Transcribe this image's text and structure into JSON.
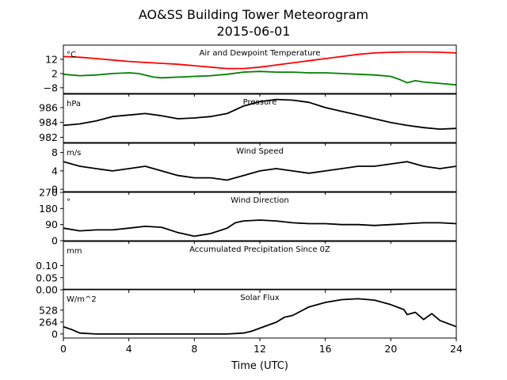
{
  "title": {
    "line1": "AO&SS Building Tower Meteorogram",
    "line2": "2015-06-01"
  },
  "colors": {
    "air_temperature": "#ff0000",
    "dewpoint_temperature": "#008000",
    "default_series": "#000000"
  },
  "chart_data": [
    {
      "type": "line",
      "title": "Air and Dewpoint Temperature",
      "unit": "°C",
      "xlabel": "",
      "xlim": [
        0,
        24
      ],
      "ylim": [
        -12,
        22
      ],
      "yticks": [
        -8,
        2,
        12
      ],
      "ytick_labels": [
        "−8",
        "2",
        "12"
      ],
      "series": [
        {
          "key": "air",
          "color": "#ff0000",
          "x": [
            0,
            1,
            2,
            3,
            4,
            5,
            6,
            7,
            8,
            9,
            10,
            11,
            12,
            13,
            14,
            15,
            16,
            17,
            18,
            19,
            20,
            21,
            22,
            23,
            24
          ],
          "y": [
            14.0,
            13.5,
            12.5,
            11.5,
            10.5,
            9.8,
            9.2,
            8.5,
            7.5,
            6.5,
            5.5,
            5.5,
            6.5,
            8.0,
            9.5,
            11.0,
            12.5,
            14.0,
            15.5,
            16.5,
            17.0,
            17.2,
            17.2,
            17.0,
            16.5
          ]
        },
        {
          "key": "dewpoint",
          "color": "#008000",
          "x": [
            0,
            1,
            2,
            3,
            4,
            4.6,
            5.5,
            6,
            7,
            8,
            9,
            10,
            11,
            12,
            13,
            14,
            15,
            16,
            17,
            18,
            19,
            20,
            20.5,
            21,
            21.5,
            22,
            23,
            24
          ],
          "y": [
            1.5,
            0.5,
            1.0,
            2.0,
            2.5,
            2.0,
            -0.5,
            -1.0,
            -0.5,
            0.0,
            0.5,
            1.5,
            3.0,
            3.5,
            3.0,
            3.0,
            2.5,
            2.5,
            2.0,
            1.5,
            1.0,
            0.0,
            -2.0,
            -4.5,
            -3.0,
            -4.0,
            -5.0,
            -6.0
          ]
        }
      ]
    },
    {
      "type": "line",
      "title": "Pressure",
      "unit": "hPa",
      "xlim": [
        0,
        24
      ],
      "ylim": [
        981.3,
        987.8
      ],
      "yticks": [
        982,
        984,
        986
      ],
      "ytick_labels": [
        "982",
        "984",
        "986"
      ],
      "series": [
        {
          "key": "pressure",
          "color": "#000000",
          "x": [
            0,
            1,
            2,
            3,
            4,
            5,
            6,
            7,
            8,
            9,
            10,
            11,
            12,
            13,
            14,
            15,
            16,
            17,
            18,
            19,
            20,
            21,
            22,
            23,
            24
          ],
          "y": [
            983.6,
            983.8,
            984.2,
            984.8,
            985.0,
            985.2,
            984.9,
            984.5,
            984.6,
            984.8,
            985.2,
            986.2,
            986.8,
            987.1,
            987.0,
            986.7,
            986.0,
            985.5,
            985.0,
            984.5,
            984.0,
            983.6,
            983.3,
            983.1,
            983.2
          ]
        }
      ]
    },
    {
      "type": "line",
      "title": "Wind Speed",
      "unit": "m/s",
      "xlim": [
        0,
        24
      ],
      "ylim": [
        -0.5,
        10
      ],
      "yticks": [
        0,
        4,
        8
      ],
      "ytick_labels": [
        "0",
        "4",
        "8"
      ],
      "series": [
        {
          "key": "wind_speed",
          "color": "#000000",
          "x": [
            0,
            1,
            2,
            3,
            4,
            5,
            6,
            7,
            8,
            9,
            10,
            11,
            12,
            13,
            14,
            15,
            16,
            17,
            18,
            19,
            20,
            21,
            22,
            23,
            24
          ],
          "y": [
            6.0,
            5.0,
            4.5,
            4.0,
            4.5,
            5.0,
            4.0,
            3.0,
            2.5,
            2.5,
            2.0,
            3.0,
            4.0,
            4.5,
            4.0,
            3.5,
            4.0,
            4.5,
            5.0,
            5.0,
            5.5,
            6.0,
            5.0,
            4.5,
            5.0
          ]
        }
      ]
    },
    {
      "type": "line",
      "title": "Wind Direction",
      "unit": "°",
      "xlim": [
        0,
        24
      ],
      "ylim": [
        0,
        270
      ],
      "yticks": [
        0,
        90,
        180,
        270
      ],
      "ytick_labels": [
        "0",
        "90",
        "180",
        "270"
      ],
      "series": [
        {
          "key": "wind_direction",
          "color": "#000000",
          "x": [
            0,
            1,
            2,
            3,
            4,
            5,
            6,
            7,
            8,
            9,
            10,
            10.5,
            11,
            12,
            13,
            14,
            15,
            16,
            17,
            18,
            19,
            20,
            21,
            22,
            23,
            24
          ],
          "y": [
            70,
            55,
            60,
            60,
            70,
            80,
            75,
            45,
            25,
            40,
            70,
            100,
            110,
            115,
            110,
            100,
            95,
            95,
            90,
            90,
            85,
            90,
            95,
            100,
            100,
            95
          ]
        }
      ]
    },
    {
      "type": "line",
      "title": "Accumulated Precipitation Since 0Z",
      "unit": "mm",
      "xlim": [
        0,
        24
      ],
      "ylim": [
        0,
        0.2
      ],
      "yticks": [
        0.0,
        0.05,
        0.1
      ],
      "ytick_labels": [
        "0.00",
        "0.05",
        "0.10"
      ],
      "series": [
        {
          "key": "precipitation",
          "color": "#000000",
          "x": [
            0,
            24
          ],
          "y": [
            0.0,
            0.0
          ]
        }
      ]
    },
    {
      "type": "line",
      "title": "Solar Flux",
      "unit": "W/m^2",
      "xlabel": "Time (UTC)",
      "xlim": [
        0,
        24
      ],
      "xticks": [
        0,
        4,
        8,
        12,
        16,
        20,
        24
      ],
      "xtick_labels": [
        "0",
        "4",
        "8",
        "12",
        "16",
        "20",
        "24"
      ],
      "ylim": [
        -90,
        980
      ],
      "yticks": [
        0,
        264,
        528
      ],
      "ytick_labels": [
        "0",
        "264",
        "528"
      ],
      "series": [
        {
          "key": "solar_flux",
          "color": "#000000",
          "x": [
            0,
            0.5,
            1,
            2,
            4,
            6,
            8,
            10,
            11,
            11.5,
            12,
            13,
            13.5,
            14,
            15,
            16,
            17,
            18,
            19,
            20,
            20.8,
            21,
            21.5,
            22,
            22.5,
            23,
            24
          ],
          "y": [
            160,
            100,
            20,
            0,
            0,
            0,
            0,
            0,
            20,
            60,
            130,
            260,
            370,
            410,
            600,
            700,
            760,
            780,
            750,
            650,
            540,
            430,
            480,
            320,
            450,
            300,
            160
          ]
        }
      ]
    }
  ]
}
